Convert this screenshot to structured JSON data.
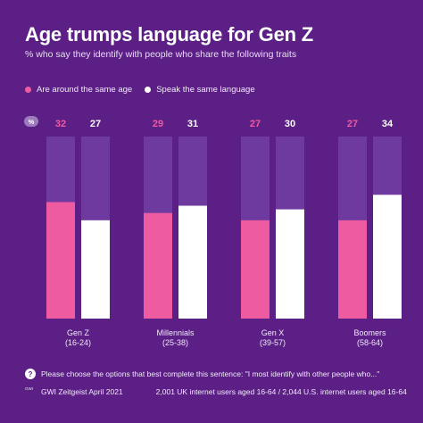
{
  "title": "Age trumps language for Gen Z",
  "subtitle": "% who say they identify with people who share the following traits",
  "percent_badge": "%",
  "colors": {
    "background": "#5b1f86",
    "track": "#6e3aa0",
    "series_pink": "#ef5ba1",
    "series_white": "#ffffff"
  },
  "chart_data": {
    "type": "bar",
    "categories": [
      {
        "name": "Gen Z",
        "range": "(16-24)"
      },
      {
        "name": "Millennials",
        "range": "(25-38)"
      },
      {
        "name": "Gen X",
        "range": "(39-57)"
      },
      {
        "name": "Boomers",
        "range": "(58-64)"
      }
    ],
    "series": [
      {
        "name": "Are around the same age",
        "color": "#ef5ba1",
        "values": [
          32,
          29,
          27,
          27
        ]
      },
      {
        "name": "Speak the same language",
        "color": "#ffffff",
        "values": [
          27,
          31,
          30,
          34
        ]
      }
    ],
    "ylim": [
      0,
      50
    ],
    "grid": false,
    "legend_position": "top-left"
  },
  "footer": {
    "question_icon": "?",
    "question": "Please choose the options that best complete this sentence: \"I most identify with other people who...\"",
    "source_icon": "GWI",
    "source": "GWI Zeitgeist April 2021",
    "sample_icon": "people-icon",
    "sample": "2,001 UK internet users aged 16-64 / 2,044 U.S. internet users aged 16-64"
  }
}
